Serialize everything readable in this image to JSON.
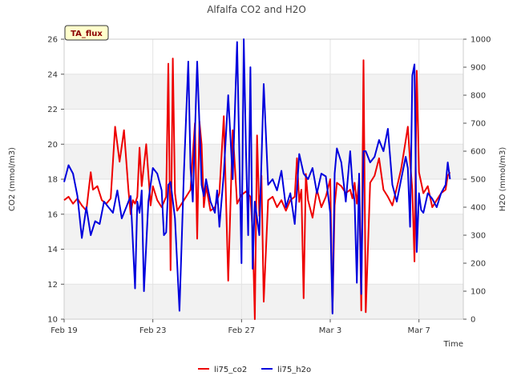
{
  "chart_data": {
    "type": "line",
    "title": "Alfalfa CO2 and H2O",
    "badge": "TA_flux",
    "xlabel": "Time",
    "ylabel_left": "CO2 (mmol/m3)",
    "ylabel_right": "H2O (mmol/m3)",
    "x_unit": "days since Feb 19",
    "xlim": [
      0,
      18
    ],
    "ylim_left": [
      10,
      26
    ],
    "ylim_right": [
      0,
      1000
    ],
    "x_ticks": [
      {
        "value": 0,
        "label": "Feb 19"
      },
      {
        "value": 4,
        "label": "Feb 23"
      },
      {
        "value": 8,
        "label": "Feb 27"
      },
      {
        "value": 12,
        "label": "Mar 3"
      },
      {
        "value": 16,
        "label": "Mar 7"
      }
    ],
    "y_ticks_left": [
      "10",
      "12",
      "14",
      "16",
      "18",
      "20",
      "22",
      "24",
      "26"
    ],
    "y_ticks_right": [
      "0",
      "100",
      "200",
      "300",
      "400",
      "500",
      "600",
      "700",
      "800",
      "900",
      "1000"
    ],
    "legend": {
      "placement": "bottom-center"
    },
    "series": [
      {
        "name": "li75_co2",
        "axis": "left",
        "color": "#ee0000",
        "x": [
          0.0,
          0.2,
          0.4,
          0.6,
          0.8,
          1.0,
          1.2,
          1.3,
          1.5,
          1.7,
          1.9,
          2.1,
          2.3,
          2.5,
          2.7,
          2.9,
          3.0,
          3.1,
          3.2,
          3.3,
          3.4,
          3.5,
          3.7,
          3.9,
          4.0,
          4.2,
          4.4,
          4.6,
          4.7,
          4.8,
          4.9,
          5.0,
          5.1,
          5.3,
          5.5,
          5.7,
          5.9,
          6.0,
          6.1,
          6.2,
          6.3,
          6.4,
          6.6,
          6.8,
          7.0,
          7.2,
          7.4,
          7.6,
          7.8,
          8.0,
          8.2,
          8.4,
          8.5,
          8.6,
          8.7,
          8.8,
          8.9,
          9.0,
          9.2,
          9.4,
          9.6,
          9.8,
          10.0,
          10.2,
          10.4,
          10.5,
          10.6,
          10.7,
          10.8,
          10.9,
          11.0,
          11.2,
          11.4,
          11.6,
          11.8,
          12.0,
          12.1,
          12.2,
          12.3,
          12.5,
          12.7,
          12.9,
          13.0,
          13.1,
          13.2,
          13.3,
          13.4,
          13.5,
          13.6,
          13.8,
          14.0,
          14.2,
          14.4,
          14.6,
          14.8,
          15.0,
          15.2,
          15.4,
          15.5,
          15.6,
          15.7,
          15.8,
          15.9,
          16.0,
          16.2,
          16.4,
          16.6,
          16.8,
          17.0,
          17.2,
          17.3,
          17.4
        ],
        "values": [
          16.8,
          17.0,
          16.6,
          16.9,
          16.5,
          16.2,
          18.4,
          17.4,
          17.6,
          16.8,
          16.6,
          16.9,
          21.0,
          19.0,
          20.8,
          17.4,
          16.0,
          16.8,
          16.6,
          17.0,
          19.8,
          17.6,
          20.0,
          16.5,
          17.6,
          16.8,
          16.4,
          17.0,
          24.6,
          12.8,
          24.9,
          17.2,
          16.2,
          16.6,
          17.0,
          17.4,
          21.2,
          14.6,
          21.3,
          20.0,
          16.4,
          17.6,
          16.2,
          16.4,
          17.2,
          21.6,
          12.2,
          20.8,
          16.6,
          17.1,
          17.3,
          17.0,
          15.0,
          10.0,
          20.5,
          15.9,
          18.2,
          11.0,
          16.8,
          17.0,
          16.4,
          16.8,
          16.2,
          16.8,
          17.0,
          19.2,
          16.7,
          17.4,
          11.2,
          18.3,
          16.8,
          15.8,
          17.4,
          16.4,
          17.0,
          18.0,
          10.4,
          16.5,
          17.8,
          17.6,
          17.2,
          17.4,
          16.9,
          17.8,
          16.6,
          18.0,
          10.5,
          24.8,
          10.4,
          17.8,
          18.2,
          19.2,
          17.4,
          17.0,
          16.5,
          17.5,
          18.6,
          20.2,
          21.0,
          19.0,
          17.4,
          13.3,
          24.2,
          18.4,
          17.2,
          17.6,
          16.4,
          16.8,
          17.2,
          17.4,
          18.2,
          18.4
        ]
      },
      {
        "name": "li75_h2o",
        "axis": "right",
        "color": "#0000dd",
        "x": [
          0.0,
          0.2,
          0.4,
          0.6,
          0.8,
          1.0,
          1.2,
          1.4,
          1.6,
          1.8,
          2.0,
          2.2,
          2.4,
          2.6,
          2.8,
          3.0,
          3.2,
          3.3,
          3.4,
          3.5,
          3.6,
          3.8,
          4.0,
          4.2,
          4.4,
          4.5,
          4.6,
          4.7,
          4.8,
          5.0,
          5.2,
          5.4,
          5.6,
          5.7,
          5.8,
          6.0,
          6.2,
          6.3,
          6.4,
          6.6,
          6.8,
          6.9,
          7.0,
          7.2,
          7.4,
          7.6,
          7.8,
          8.0,
          8.1,
          8.2,
          8.3,
          8.4,
          8.5,
          8.6,
          8.8,
          9.0,
          9.2,
          9.4,
          9.6,
          9.8,
          10.0,
          10.2,
          10.4,
          10.6,
          10.8,
          11.0,
          11.2,
          11.4,
          11.6,
          11.8,
          12.0,
          12.1,
          12.2,
          12.3,
          12.5,
          12.7,
          12.9,
          13.0,
          13.1,
          13.2,
          13.3,
          13.4,
          13.5,
          13.6,
          13.8,
          14.0,
          14.2,
          14.4,
          14.6,
          14.8,
          15.0,
          15.2,
          15.4,
          15.5,
          15.6,
          15.7,
          15.8,
          15.9,
          16.0,
          16.1,
          16.2,
          16.4,
          16.6,
          16.8,
          17.0,
          17.2,
          17.3,
          17.4
        ],
        "values": [
          490,
          550,
          520,
          440,
          290,
          400,
          300,
          350,
          340,
          420,
          400,
          380,
          460,
          360,
          400,
          440,
          110,
          420,
          380,
          460,
          100,
          420,
          540,
          520,
          460,
          300,
          310,
          480,
          490,
          360,
          30,
          520,
          920,
          540,
          420,
          920,
          480,
          440,
          500,
          420,
          380,
          460,
          330,
          520,
          800,
          500,
          990,
          200,
          1000,
          600,
          300,
          900,
          180,
          420,
          300,
          840,
          480,
          500,
          460,
          530,
          400,
          450,
          340,
          590,
          520,
          500,
          540,
          450,
          520,
          510,
          380,
          20,
          520,
          610,
          560,
          420,
          600,
          480,
          420,
          130,
          520,
          90,
          600,
          600,
          560,
          580,
          640,
          600,
          680,
          480,
          420,
          500,
          580,
          540,
          330,
          870,
          910,
          240,
          450,
          390,
          380,
          450,
          430,
          400,
          450,
          480,
          560,
          500
        ]
      }
    ]
  }
}
